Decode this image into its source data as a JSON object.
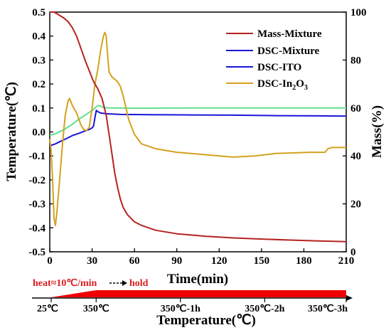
{
  "chart_data": {
    "type": "line",
    "xlabel": "Time(min)",
    "ylabel_left": "Temperature(℃)",
    "ylabel_right": "Mass(%)",
    "xlim": [
      0,
      210
    ],
    "ylim_left": [
      -0.5,
      0.5
    ],
    "ylim_right": [
      0,
      100
    ],
    "x_ticks": [
      "0",
      "30",
      "60",
      "90",
      "120",
      "150",
      "180",
      "210"
    ],
    "y_left_ticks": [
      "-0.5",
      "-0.4",
      "-0.3",
      "-0.2",
      "-0.1",
      "0.0",
      "0.1",
      "0.2",
      "0.3",
      "0.4",
      "0.5"
    ],
    "y_right_ticks": [
      "0",
      "20",
      "40",
      "60",
      "80",
      "100"
    ],
    "legend_position": "top-right",
    "legend": [
      "Mass-Mixture",
      "DSC-Mixture",
      "DSC-ITO",
      "DSC-In2O3"
    ],
    "series": [
      {
        "name": "Mass-Mixture",
        "axis": "right",
        "color": "#b5231f",
        "points": [
          [
            0,
            100
          ],
          [
            3,
            100
          ],
          [
            6,
            99
          ],
          [
            10,
            97.5
          ],
          [
            13,
            96
          ],
          [
            16,
            93.5
          ],
          [
            19,
            90
          ],
          [
            22,
            85
          ],
          [
            25,
            80
          ],
          [
            28,
            75.5
          ],
          [
            31,
            71
          ],
          [
            34,
            68
          ],
          [
            37,
            64
          ],
          [
            40,
            57
          ],
          [
            42,
            49
          ],
          [
            44,
            41
          ],
          [
            46,
            33
          ],
          [
            48,
            27
          ],
          [
            50,
            22
          ],
          [
            52,
            18.5
          ],
          [
            55,
            15.5
          ],
          [
            60,
            12.5
          ],
          [
            65,
            11
          ],
          [
            75,
            9
          ],
          [
            90,
            7.5
          ],
          [
            110,
            6.5
          ],
          [
            130,
            5.8
          ],
          [
            150,
            5.3
          ],
          [
            170,
            4.9
          ],
          [
            190,
            4.5
          ],
          [
            210,
            4.2
          ]
        ]
      },
      {
        "name": "DSC-Mixture",
        "axis": "left",
        "color": "#1b14d8",
        "points": [
          [
            0,
            -0.058
          ],
          [
            4,
            -0.05
          ],
          [
            8,
            -0.038
          ],
          [
            12,
            -0.027
          ],
          [
            16,
            -0.015
          ],
          [
            20,
            -0.007
          ],
          [
            24,
            0.002
          ],
          [
            28,
            0.01
          ],
          [
            30,
            0.017
          ],
          [
            31,
            0.025
          ],
          [
            32,
            0.06
          ],
          [
            33,
            0.09
          ],
          [
            34,
            0.085
          ],
          [
            36,
            0.079
          ],
          [
            40,
            0.076
          ],
          [
            50,
            0.073
          ],
          [
            70,
            0.072
          ],
          [
            100,
            0.071
          ],
          [
            130,
            0.07
          ],
          [
            160,
            0.068
          ],
          [
            190,
            0.067
          ],
          [
            210,
            0.066
          ]
        ]
      },
      {
        "name": "DSC-ITO",
        "axis": "left",
        "color": "#5fe08c",
        "points": [
          [
            0,
            -0.015
          ],
          [
            5,
            -0.005
          ],
          [
            10,
            0.01
          ],
          [
            15,
            0.028
          ],
          [
            20,
            0.05
          ],
          [
            25,
            0.07
          ],
          [
            30,
            0.09
          ],
          [
            34,
            0.11
          ],
          [
            36,
            0.108
          ],
          [
            38,
            0.102
          ],
          [
            42,
            0.1
          ],
          [
            60,
            0.099
          ],
          [
            100,
            0.1
          ],
          [
            150,
            0.1
          ],
          [
            210,
            0.1
          ]
        ]
      },
      {
        "name": "DSC-In2O3",
        "axis": "left",
        "color": "#d4a11e",
        "points": [
          [
            0,
            -0.03
          ],
          [
            1,
            -0.08
          ],
          [
            2,
            -0.2
          ],
          [
            3,
            -0.36
          ],
          [
            4,
            -0.39
          ],
          [
            5,
            -0.34
          ],
          [
            7,
            -0.2
          ],
          [
            9,
            -0.05
          ],
          [
            11,
            0.07
          ],
          [
            13,
            0.13
          ],
          [
            14,
            0.14
          ],
          [
            16,
            0.11
          ],
          [
            19,
            0.08
          ],
          [
            22,
            0.03
          ],
          [
            24,
            0.01
          ],
          [
            26,
            0.005
          ],
          [
            28,
            0.02
          ],
          [
            30,
            0.1
          ],
          [
            32,
            0.2
          ],
          [
            34,
            0.26
          ],
          [
            35,
            0.3
          ],
          [
            36,
            0.34
          ],
          [
            37,
            0.37
          ],
          [
            38,
            0.4
          ],
          [
            39,
            0.415
          ],
          [
            40,
            0.4
          ],
          [
            41,
            0.32
          ],
          [
            42,
            0.25
          ],
          [
            44,
            0.23
          ],
          [
            46,
            0.22
          ],
          [
            48,
            0.21
          ],
          [
            50,
            0.19
          ],
          [
            52,
            0.15
          ],
          [
            54,
            0.1
          ],
          [
            56,
            0.05
          ],
          [
            60,
            -0.01
          ],
          [
            65,
            -0.05
          ],
          [
            75,
            -0.07
          ],
          [
            90,
            -0.085
          ],
          [
            110,
            -0.095
          ],
          [
            130,
            -0.105
          ],
          [
            145,
            -0.1
          ],
          [
            160,
            -0.09
          ],
          [
            185,
            -0.085
          ],
          [
            195,
            -0.085
          ],
          [
            197,
            -0.07
          ],
          [
            200,
            -0.065
          ],
          [
            210,
            -0.065
          ]
        ]
      }
    ],
    "bottom_axis": {
      "label": "Temperature(℃)",
      "heat_label": "heat≈10℃/min",
      "hold_label": "hold",
      "bar_color": "#ee0000",
      "stages": [
        {
          "label": "25℃",
          "x": 0
        },
        {
          "label": "350℃",
          "x": 32
        },
        {
          "label": "350℃-1h",
          "x": 92
        },
        {
          "label": "350℃-2h",
          "x": 152
        },
        {
          "label": "350℃-3h",
          "x": 210
        }
      ]
    }
  }
}
